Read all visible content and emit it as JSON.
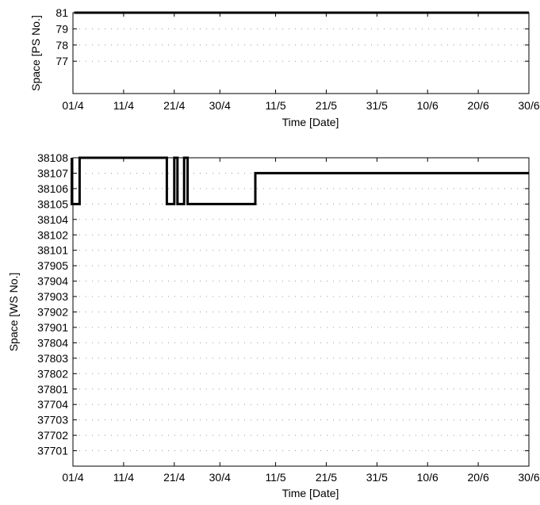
{
  "chart_data": [
    {
      "type": "line",
      "xlabel": "Time [Date]",
      "ylabel": "Space [PS No.]",
      "x_ticks": [
        "01/4",
        "11/4",
        "21/4",
        "30/4",
        "11/5",
        "21/5",
        "31/5",
        "10/6",
        "20/6",
        "30/6"
      ],
      "y_ticks": [
        "81",
        "79",
        "78",
        "77"
      ],
      "ylim": [
        "77",
        "81"
      ],
      "grid": "dotted",
      "series": [
        {
          "values": [
            {
              "x": "01/4",
              "y": "81"
            },
            {
              "x": "30/6",
              "y": "81"
            }
          ]
        }
      ]
    },
    {
      "type": "line",
      "xlabel": "Time [Date]",
      "ylabel": "Space [WS No.]",
      "x_ticks": [
        "01/4",
        "11/4",
        "21/4",
        "30/4",
        "11/5",
        "21/5",
        "31/5",
        "10/6",
        "20/6",
        "30/6"
      ],
      "y_ticks": [
        "38108",
        "38107",
        "38106",
        "38105",
        "38104",
        "38102",
        "38101",
        "37905",
        "37904",
        "37903",
        "37902",
        "37901",
        "37804",
        "37803",
        "37802",
        "37801",
        "37704",
        "37703",
        "37702",
        "37701"
      ],
      "ylim": [
        "37701",
        "38108"
      ],
      "grid": "dotted",
      "series": [
        {
          "values": [
            {
              "x": "01/4",
              "y": "38108"
            },
            {
              "x": "01/4",
              "y": "38105"
            },
            {
              "x": "02/4",
              "y": "38105"
            },
            {
              "x": "02/4",
              "y": "38108"
            },
            {
              "x": "20/4",
              "y": "38108"
            },
            {
              "x": "20/4",
              "y": "38105"
            },
            {
              "x": "21/4",
              "y": "38105"
            },
            {
              "x": "21/4",
              "y": "38108"
            },
            {
              "x": "21/4",
              "y": "38108"
            },
            {
              "x": "21/4",
              "y": "38105"
            },
            {
              "x": "22/4",
              "y": "38105"
            },
            {
              "x": "22/4",
              "y": "38108"
            },
            {
              "x": "23/4",
              "y": "38108"
            },
            {
              "x": "23/4",
              "y": "38105"
            },
            {
              "x": "07/5",
              "y": "38105"
            },
            {
              "x": "07/5",
              "y": "38107"
            },
            {
              "x": "30/6",
              "y": "38107"
            }
          ]
        }
      ]
    }
  ]
}
